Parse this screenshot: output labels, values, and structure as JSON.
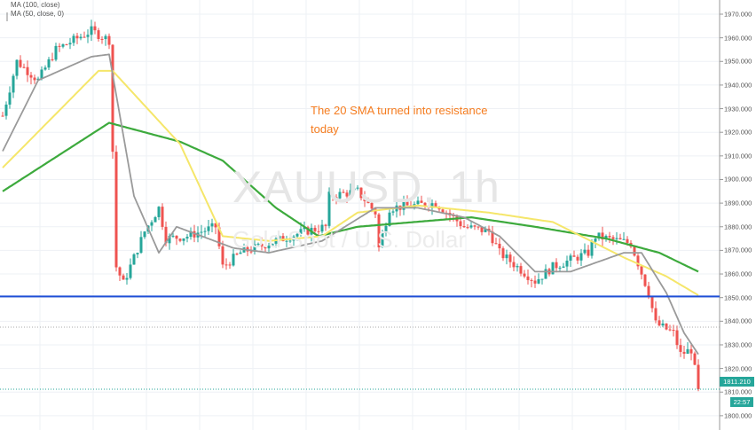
{
  "legend": {
    "ma100": "MA (100, close)",
    "ma50": "MA (50, close, 0)"
  },
  "watermark": {
    "symbol": "XAUUSD, 1h",
    "name": "Gold Spot / U.S. Dollar"
  },
  "annotation": "The 20 SMA turned into resistance today",
  "price_label": "1811.210",
  "countdown_label": "22:57",
  "colors": {
    "up": "#26a69a",
    "down": "#ef5350",
    "ma100": "#3daa3d",
    "ma50": "#f5e66a",
    "ma20": "#9a9a9a",
    "support": "#1f4fd6",
    "annotation": "#f57c1f"
  },
  "chart_data": {
    "type": "candlestick",
    "symbol": "XAUUSD",
    "timeframe": "1h",
    "ylim": [
      1798,
      1973
    ],
    "yticks": [
      "1800.000",
      "1810.000",
      "1820.000",
      "1830.000",
      "1840.000",
      "1850.000",
      "1860.000",
      "1870.000",
      "1880.000",
      "1890.000",
      "1900.000",
      "1910.000",
      "1920.000",
      "1930.000",
      "1940.000",
      "1950.000",
      "1960.000",
      "1970.000"
    ],
    "ytick_values": [
      1800,
      1810,
      1820,
      1830,
      1840,
      1850,
      1860,
      1870,
      1880,
      1890,
      1900,
      1910,
      1920,
      1930,
      1940,
      1950,
      1960,
      1970
    ],
    "grid": true,
    "close_path": [
      [
        0,
        1927
      ],
      [
        4,
        1950
      ],
      [
        10,
        1942
      ],
      [
        15,
        1955
      ],
      [
        25,
        1963
      ],
      [
        30,
        1959
      ],
      [
        31,
        1912
      ],
      [
        32,
        1863
      ],
      [
        34,
        1856
      ],
      [
        40,
        1878
      ],
      [
        44,
        1888
      ],
      [
        46,
        1875
      ],
      [
        52,
        1876
      ],
      [
        60,
        1880
      ],
      [
        62,
        1863
      ],
      [
        67,
        1869
      ],
      [
        75,
        1873
      ],
      [
        85,
        1878
      ],
      [
        91,
        1880
      ],
      [
        92,
        1893
      ],
      [
        100,
        1895
      ],
      [
        105,
        1886
      ],
      [
        106,
        1871
      ],
      [
        109,
        1888
      ],
      [
        122,
        1890
      ],
      [
        130,
        1880
      ],
      [
        137,
        1878
      ],
      [
        140,
        1869
      ],
      [
        150,
        1857
      ],
      [
        155,
        1863
      ],
      [
        165,
        1869
      ],
      [
        167,
        1876
      ],
      [
        177,
        1873
      ],
      [
        182,
        1852
      ],
      [
        184,
        1839
      ],
      [
        189,
        1835
      ],
      [
        191,
        1826
      ],
      [
        194,
        1828
      ],
      [
        196,
        1811.21
      ]
    ],
    "series": [
      {
        "name": "MA (100, close)",
        "points": [
          [
            0,
            1895
          ],
          [
            30,
            1924
          ],
          [
            50,
            1916
          ],
          [
            62,
            1908
          ],
          [
            77,
            1888
          ],
          [
            89,
            1876
          ],
          [
            100,
            1880
          ],
          [
            132,
            1884
          ],
          [
            150,
            1880
          ],
          [
            170,
            1875
          ],
          [
            185,
            1869
          ],
          [
            196,
            1861
          ]
        ]
      },
      {
        "name": "MA (50, close, 0)",
        "points": [
          [
            0,
            1905
          ],
          [
            27,
            1946
          ],
          [
            31,
            1946
          ],
          [
            50,
            1915
          ],
          [
            62,
            1876
          ],
          [
            75,
            1874
          ],
          [
            90,
            1876
          ],
          [
            100,
            1886
          ],
          [
            117,
            1889
          ],
          [
            137,
            1886
          ],
          [
            155,
            1882
          ],
          [
            175,
            1867
          ],
          [
            187,
            1859
          ],
          [
            196,
            1851
          ]
        ]
      },
      {
        "points": [
          [
            0,
            1912
          ],
          [
            10,
            1942
          ],
          [
            25,
            1952
          ],
          [
            30,
            1953
          ],
          [
            37,
            1893
          ],
          [
            44,
            1869
          ],
          [
            49,
            1880
          ],
          [
            65,
            1871
          ],
          [
            75,
            1869
          ],
          [
            90,
            1874
          ],
          [
            105,
            1888
          ],
          [
            117,
            1888
          ],
          [
            130,
            1884
          ],
          [
            140,
            1876
          ],
          [
            150,
            1861
          ],
          [
            160,
            1861
          ],
          [
            175,
            1869
          ],
          [
            180,
            1869
          ],
          [
            187,
            1852
          ],
          [
            192,
            1835
          ],
          [
            196,
            1826
          ]
        ]
      }
    ],
    "horizontal_lines": [
      {
        "value": 1850.5,
        "style": "solid"
      },
      {
        "value": 1837.5,
        "style": "dotted"
      }
    ]
  }
}
